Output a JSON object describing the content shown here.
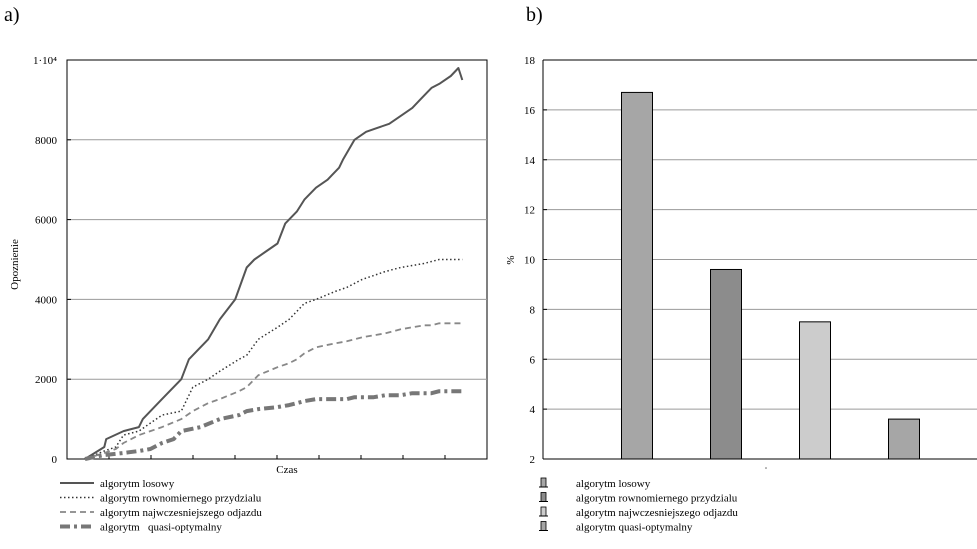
{
  "panels": {
    "a": "a)",
    "b": "b)"
  },
  "chart_data": [
    {
      "type": "line",
      "title": "",
      "xlabel": "Czas",
      "ylabel": "Opoznienie",
      "ylim": [
        0,
        10000
      ],
      "y_ticks": [
        {
          "value": 0,
          "label": "0"
        },
        {
          "value": 2000,
          "label": "2000"
        },
        {
          "value": 4000,
          "label": "4000"
        },
        {
          "value": 6000,
          "label": "6000"
        },
        {
          "value": 8000,
          "label": "8000"
        },
        {
          "value": 10000,
          "label": "1·10⁴"
        }
      ],
      "xlim": [
        0,
        100
      ],
      "grid": "horizontal",
      "legend_position": "bottom",
      "series": [
        {
          "name": "algorytm losowy",
          "style": "solid",
          "color": "#555555",
          "x": [
            0,
            5,
            5.5,
            10,
            14,
            15,
            20,
            25,
            27,
            29,
            32,
            35,
            39,
            42,
            44,
            47,
            50,
            52,
            55,
            57,
            60,
            63,
            64,
            66,
            67,
            70,
            73,
            76,
            79,
            82,
            85,
            87,
            89,
            90,
            92,
            95,
            96,
            97,
            98
          ],
          "y": [
            0,
            300,
            500,
            700,
            800,
            1000,
            1500,
            2000,
            2500,
            2700,
            3000,
            3500,
            4000,
            4800,
            5000,
            5200,
            5400,
            5900,
            6200,
            6500,
            6800,
            7000,
            7100,
            7300,
            7500,
            8000,
            8200,
            8300,
            8400,
            8600,
            8800,
            9000,
            9200,
            9300,
            9400,
            9600,
            9700,
            9800,
            9500
          ]
        },
        {
          "name": "algorytm rownomiernego przydzialu",
          "style": "dotted",
          "color": "#333333",
          "x": [
            0,
            5,
            8,
            10,
            14,
            17,
            20,
            25,
            28,
            32,
            35,
            40,
            42,
            45,
            50,
            53,
            55,
            57,
            60,
            65,
            68,
            70,
            72,
            75,
            78,
            80,
            82,
            85,
            88,
            90,
            92,
            95,
            96,
            97,
            98
          ],
          "y": [
            0,
            200,
            300,
            600,
            700,
            900,
            1100,
            1200,
            1800,
            2000,
            2200,
            2500,
            2600,
            3000,
            3300,
            3500,
            3700,
            3900,
            4000,
            4200,
            4300,
            4400,
            4500,
            4600,
            4700,
            4750,
            4800,
            4850,
            4900,
            4950,
            5000,
            5000,
            5000,
            5000,
            5000
          ]
        },
        {
          "name": "algorytm najwczesniejszego odjazdu",
          "style": "dashed",
          "color": "#888888",
          "x": [
            0,
            5,
            8,
            10,
            14,
            17,
            20,
            25,
            28,
            32,
            35,
            40,
            42,
            45,
            50,
            53,
            55,
            57,
            60,
            65,
            68,
            70,
            72,
            75,
            78,
            80,
            82,
            85,
            88,
            90,
            92,
            95,
            96,
            97,
            98
          ],
          "y": [
            0,
            150,
            250,
            400,
            600,
            700,
            800,
            1000,
            1200,
            1400,
            1500,
            1700,
            1800,
            2100,
            2300,
            2400,
            2500,
            2650,
            2800,
            2900,
            2950,
            3000,
            3050,
            3100,
            3150,
            3200,
            3250,
            3300,
            3350,
            3350,
            3400,
            3400,
            3400,
            3400,
            3400
          ]
        },
        {
          "name": "algorytm   quasi-optymalny",
          "style": "dashdot",
          "color": "#777777",
          "x": [
            0,
            5,
            10,
            14,
            17,
            20,
            23,
            25,
            30,
            35,
            40,
            42,
            45,
            50,
            53,
            55,
            57,
            60,
            65,
            68,
            70,
            72,
            75,
            78,
            80,
            82,
            85,
            88,
            90,
            92,
            95,
            96,
            97,
            98
          ],
          "y": [
            0,
            100,
            150,
            200,
            250,
            400,
            500,
            700,
            800,
            1000,
            1100,
            1200,
            1250,
            1300,
            1350,
            1400,
            1450,
            1500,
            1500,
            1500,
            1550,
            1550,
            1550,
            1600,
            1600,
            1600,
            1650,
            1650,
            1650,
            1700,
            1700,
            1700,
            1700,
            1700
          ]
        }
      ]
    },
    {
      "type": "bar",
      "title": "",
      "xlabel": "",
      "ylabel": "%",
      "ylim": [
        2,
        18
      ],
      "y_ticks": [
        2,
        4,
        6,
        8,
        10,
        12,
        14,
        16,
        18
      ],
      "grid": "horizontal",
      "legend_position": "bottom",
      "categories": [
        "algorytm losowy",
        "algorytm rownomiernego przydzialu",
        "algorytm najwczesniejszego odjazdu",
        "algorytm quasi-optymalny"
      ],
      "values": [
        16.7,
        9.6,
        7.5,
        3.6
      ],
      "colors": [
        "#a6a6a6",
        "#8c8c8c",
        "#cccccc",
        "#a6a6a6"
      ]
    }
  ]
}
